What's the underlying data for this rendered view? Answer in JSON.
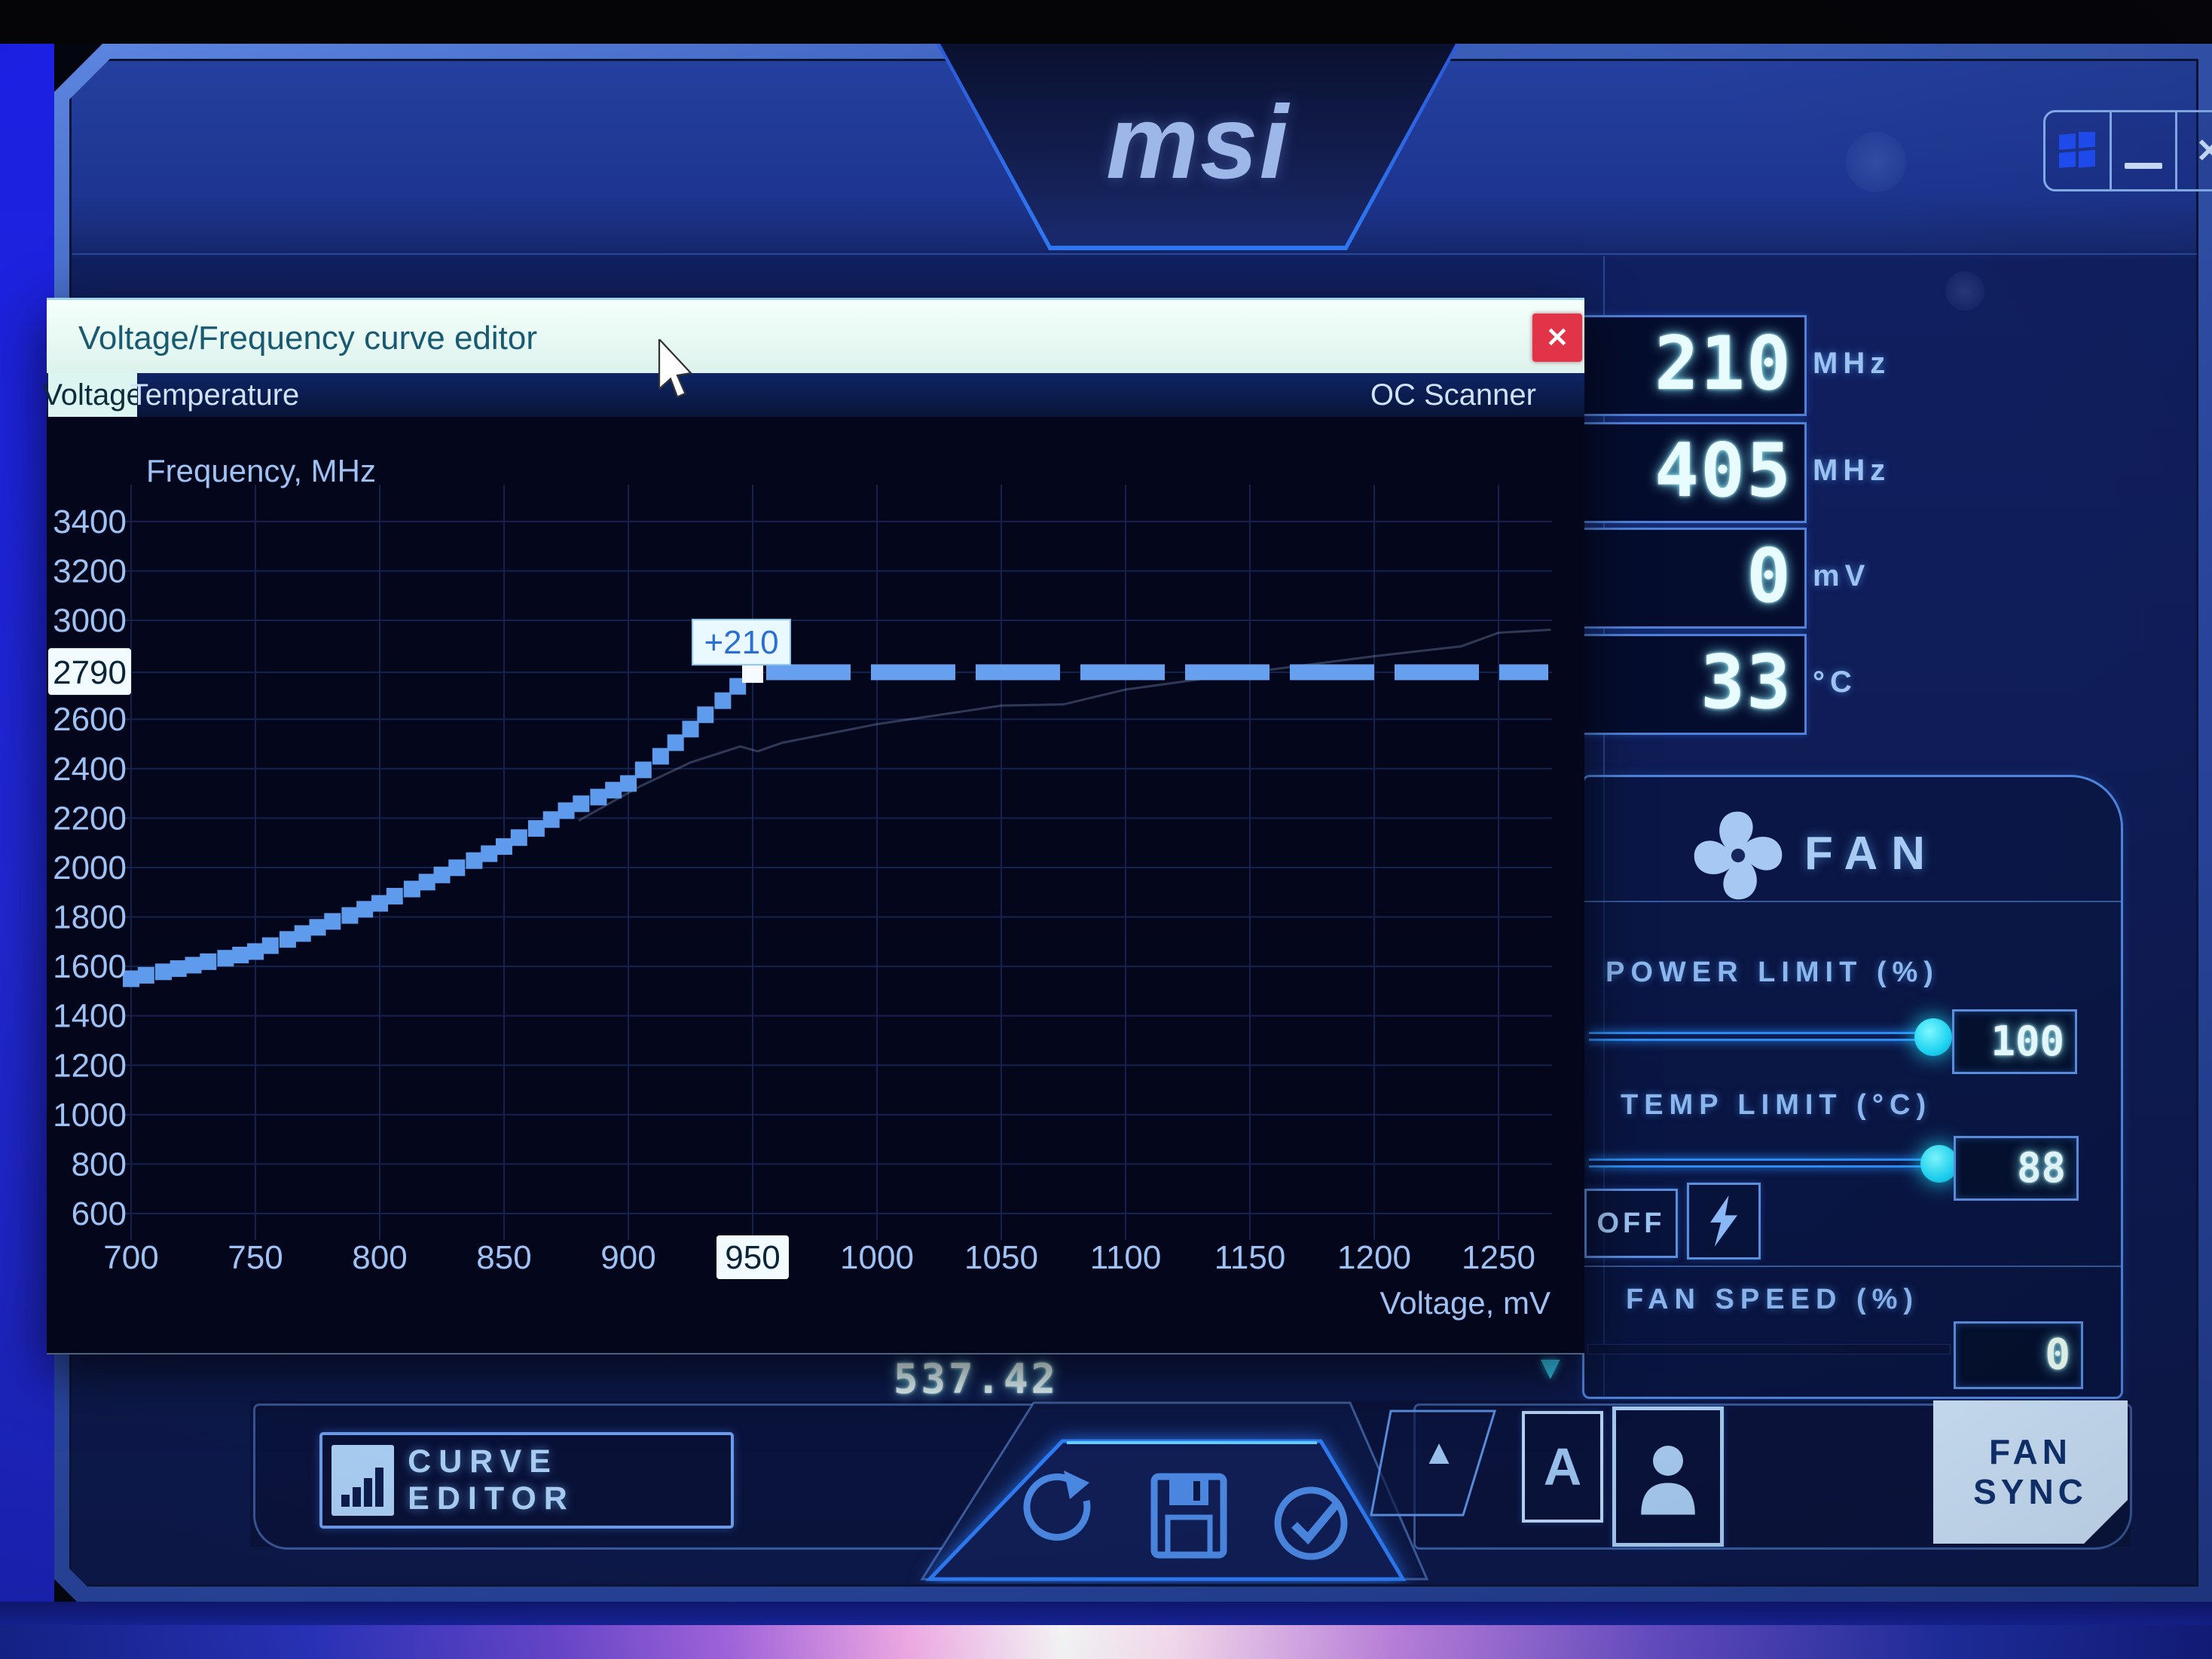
{
  "app": {
    "logo_text": "msi",
    "controls": {
      "minimize": "_",
      "close": "✕"
    }
  },
  "dialog": {
    "title": "Voltage/Frequency curve editor",
    "close": "✕",
    "tabs": {
      "voltage": "Voltage",
      "temperature": "Temperature"
    },
    "oc_scanner": "OC Scanner"
  },
  "chart_data": {
    "type": "line",
    "title": "Frequency, MHz",
    "xlabel": "Voltage, mV",
    "x_ticks": [
      700,
      750,
      800,
      850,
      900,
      950,
      1000,
      1050,
      1100,
      1150,
      1200,
      1250
    ],
    "highlighted_x_tick": 950,
    "y_ticks": [
      600,
      800,
      1000,
      1200,
      1400,
      1600,
      1800,
      2000,
      2200,
      2400,
      2600,
      2790,
      3000,
      3200,
      3400
    ],
    "highlighted_y_tick": 2790,
    "grid": true,
    "series": [
      {
        "name": "vf-curve-steps",
        "style": "square-steps",
        "points": [
          [
            700,
            1550
          ],
          [
            706,
            1564
          ],
          [
            713,
            1578
          ],
          [
            719,
            1591
          ],
          [
            725,
            1605
          ],
          [
            731,
            1619
          ],
          [
            738,
            1633
          ],
          [
            744,
            1646
          ],
          [
            750,
            1660
          ],
          [
            756,
            1684
          ],
          [
            763,
            1709
          ],
          [
            769,
            1733
          ],
          [
            775,
            1758
          ],
          [
            781,
            1782
          ],
          [
            788,
            1806
          ],
          [
            794,
            1831
          ],
          [
            800,
            1855
          ],
          [
            806,
            1884
          ],
          [
            813,
            1913
          ],
          [
            819,
            1941
          ],
          [
            825,
            1970
          ],
          [
            831,
            1999
          ],
          [
            838,
            2028
          ],
          [
            844,
            2056
          ],
          [
            850,
            2085
          ],
          [
            856,
            2121
          ],
          [
            863,
            2158
          ],
          [
            869,
            2194
          ],
          [
            875,
            2230
          ],
          [
            881,
            2258
          ],
          [
            888,
            2285
          ],
          [
            894,
            2313
          ],
          [
            900,
            2340
          ],
          [
            906,
            2395
          ],
          [
            913,
            2450
          ],
          [
            919,
            2505
          ],
          [
            925,
            2560
          ],
          [
            931,
            2618
          ],
          [
            938,
            2675
          ],
          [
            944,
            2733
          ],
          [
            950,
            2790
          ]
        ]
      },
      {
        "name": "vf-curve-flat",
        "style": "thick-dashes",
        "freq": 2790,
        "from_mv": 950,
        "to_mv": 1271
      },
      {
        "name": "stock-curve",
        "style": "faint-line",
        "points": [
          [
            880,
            2190
          ],
          [
            905,
            2330
          ],
          [
            925,
            2425
          ],
          [
            945,
            2490
          ],
          [
            952,
            2470
          ],
          [
            962,
            2505
          ],
          [
            1000,
            2580
          ],
          [
            1050,
            2655
          ],
          [
            1075,
            2660
          ],
          [
            1100,
            2720
          ],
          [
            1150,
            2790
          ],
          [
            1200,
            2855
          ],
          [
            1235,
            2895
          ],
          [
            1250,
            2950
          ],
          [
            1271,
            2962
          ]
        ]
      }
    ],
    "annotation": {
      "label": "+210",
      "mv": 950,
      "mhz": 2790
    },
    "selected_point": {
      "mv": 950,
      "mhz": 2790
    }
  },
  "stats": [
    {
      "value": "210",
      "unit": "MHz"
    },
    {
      "value": "405",
      "unit": "MHz"
    },
    {
      "value": "0",
      "unit": "mV"
    },
    {
      "value": "33",
      "unit": "°C"
    }
  ],
  "fan": {
    "title": "FAN",
    "power_limit_label": "POWER LIMIT (%)",
    "power_limit_value": "100",
    "temp_limit_label": "TEMP LIMIT (°C)",
    "temp_limit_value": "88",
    "off_label": "OFF",
    "fan_speed_label": "FAN SPEED (%)",
    "fan_speed_value": "0",
    "fan_sync_label": "FAN SYNC"
  },
  "bottom": {
    "curve_editor_label": "CURVE EDITOR",
    "reading": "537.42",
    "auto_label": "A",
    "up_label": "▲",
    "down_indicator": "▼"
  },
  "colors": {
    "accent": "#2f7ff2",
    "knob_cyan": "#1fd4f2",
    "close_red": "#e23448",
    "curve_blue": "#5f9bec",
    "selected_white": "#f6fbff",
    "title_bar_bg": "#eefcf7",
    "highlight_label_bg": "#f2fbff"
  }
}
